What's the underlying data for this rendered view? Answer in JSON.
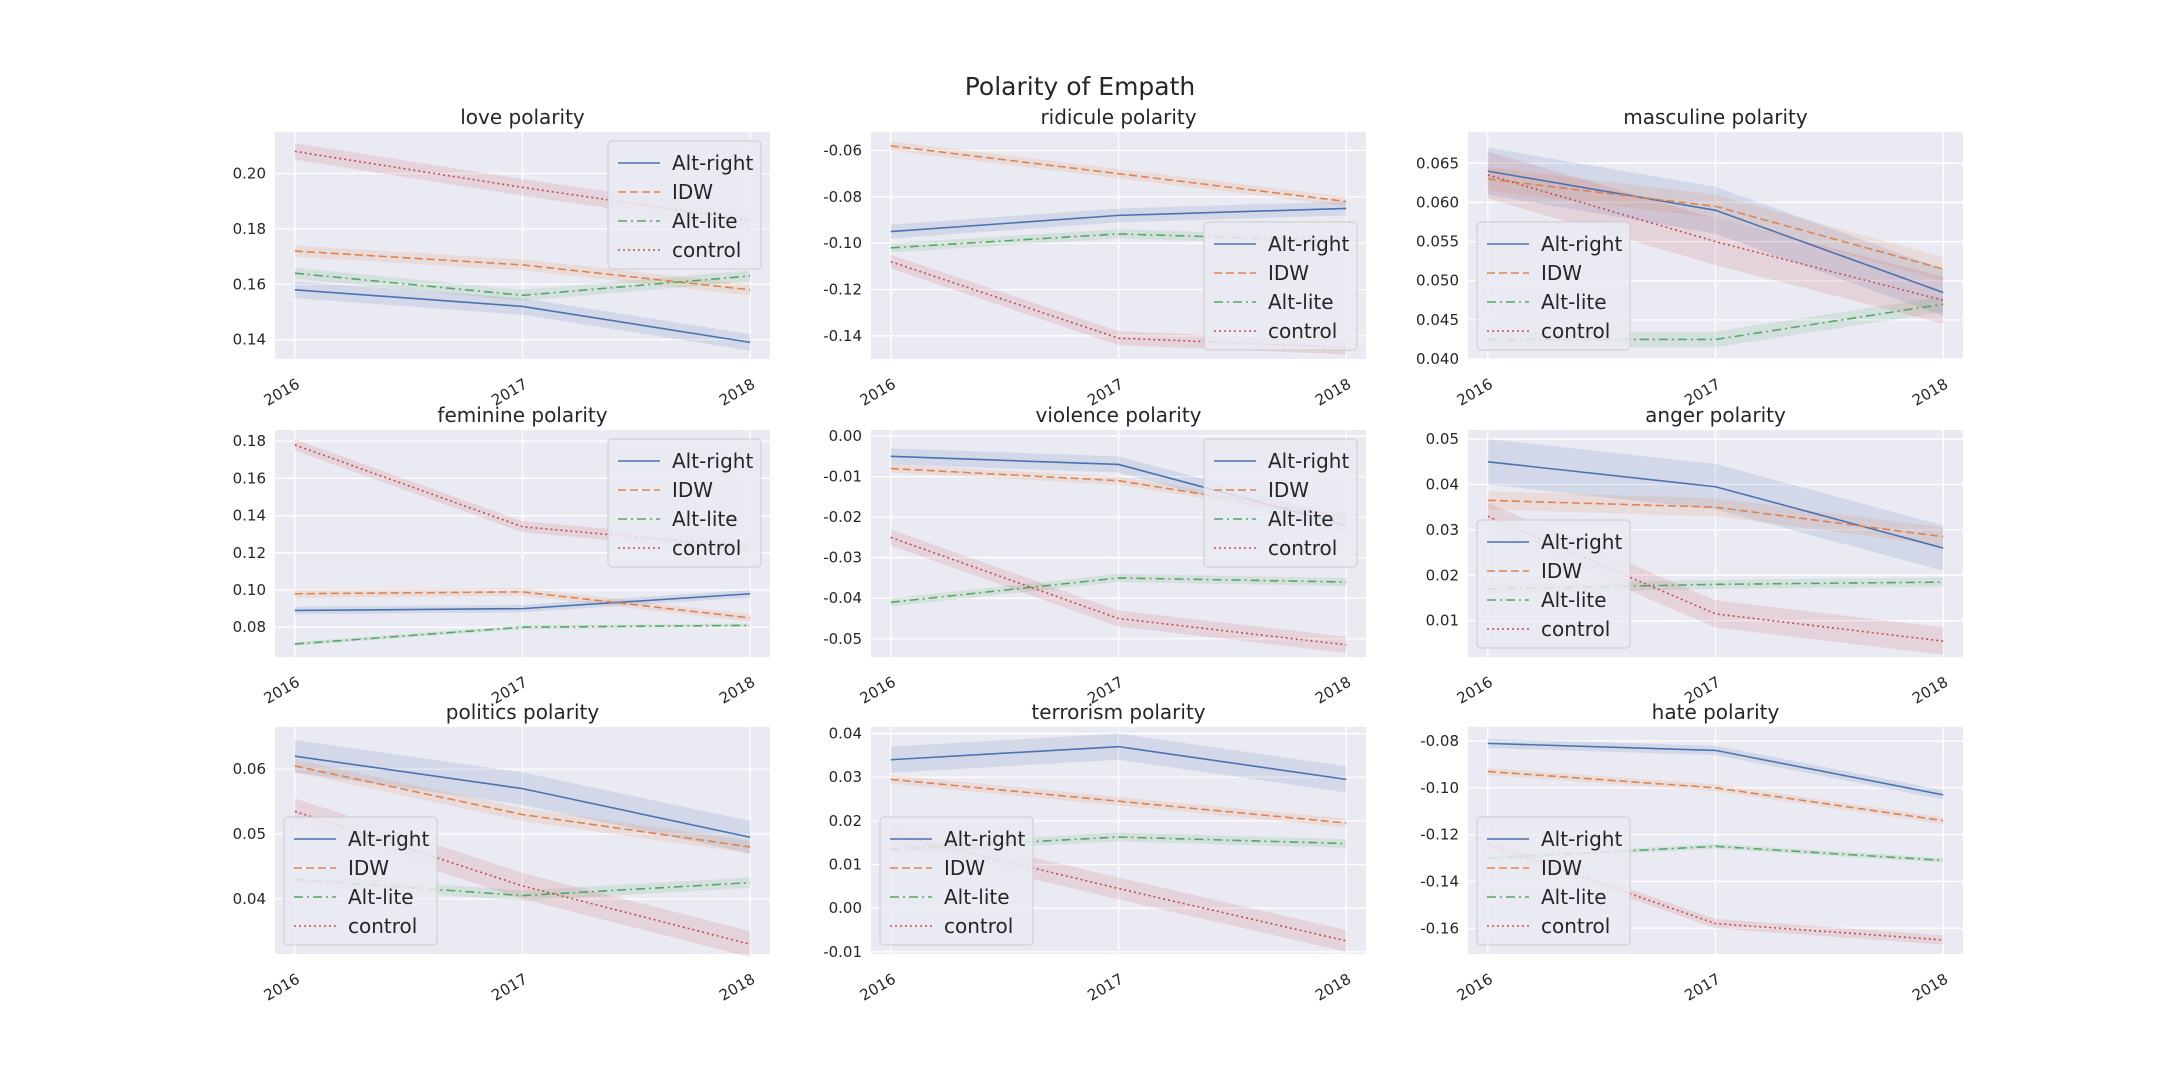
{
  "figure": {
    "title": "Polarity of Empath"
  },
  "colors": {
    "Alt-right": "#4c72b0",
    "IDW": "#dd8452",
    "Alt-lite": "#55a868",
    "control": "#c44e52",
    "panel_bg": "#eaeaf2",
    "grid": "#ffffff"
  },
  "legend_labels": [
    "Alt-right",
    "IDW",
    "Alt-lite",
    "control"
  ],
  "chart_data": [
    {
      "type": "line",
      "title": "love polarity",
      "legend": "upper right",
      "x": [
        "2016",
        "2017",
        "2018"
      ],
      "yticks": [
        "0.14",
        "0.16",
        "0.18",
        "0.20"
      ],
      "ylim": [
        0.133,
        0.215
      ],
      "series": [
        {
          "name": "Alt-right",
          "values": [
            0.158,
            0.152,
            0.139
          ],
          "band": 0.003
        },
        {
          "name": "IDW",
          "values": [
            0.172,
            0.167,
            0.158
          ],
          "band": 0.002
        },
        {
          "name": "Alt-lite",
          "values": [
            0.164,
            0.156,
            0.163
          ],
          "band": 0.002
        },
        {
          "name": "control",
          "values": [
            0.208,
            0.195,
            0.183
          ],
          "band": 0.003
        }
      ]
    },
    {
      "type": "line",
      "title": "ridicule polarity",
      "legend": "lower right",
      "x": [
        "2016",
        "2017",
        "2018"
      ],
      "yticks": [
        "-0.14",
        "-0.12",
        "-0.10",
        "-0.08",
        "-0.06"
      ],
      "ylim": [
        -0.15,
        -0.052
      ],
      "series": [
        {
          "name": "Alt-right",
          "values": [
            -0.095,
            -0.088,
            -0.085
          ],
          "band": 0.003
        },
        {
          "name": "IDW",
          "values": [
            -0.058,
            -0.07,
            -0.082
          ],
          "band": 0.002
        },
        {
          "name": "Alt-lite",
          "values": [
            -0.102,
            -0.096,
            -0.099
          ],
          "band": 0.002
        },
        {
          "name": "control",
          "values": [
            -0.108,
            -0.141,
            -0.145
          ],
          "band": 0.003
        }
      ]
    },
    {
      "type": "line",
      "title": "masculine polarity",
      "legend": "lower left",
      "x": [
        "2016",
        "2017",
        "2018"
      ],
      "yticks": [
        "0.040",
        "0.045",
        "0.050",
        "0.055",
        "0.060",
        "0.065"
      ],
      "ylim": [
        0.04,
        0.069
      ],
      "series": [
        {
          "name": "Alt-right",
          "values": [
            0.064,
            0.059,
            0.0485
          ],
          "band": 0.003
        },
        {
          "name": "IDW",
          "values": [
            0.063,
            0.0595,
            0.0515
          ],
          "band": 0.0015
        },
        {
          "name": "Alt-lite",
          "values": [
            0.0425,
            0.0425,
            0.047
          ],
          "band": 0.001
        },
        {
          "name": "control",
          "values": [
            0.0635,
            0.055,
            0.0475
          ],
          "band": 0.003
        }
      ]
    },
    {
      "type": "line",
      "title": "feminine polarity",
      "legend": "upper right",
      "x": [
        "2016",
        "2017",
        "2018"
      ],
      "yticks": [
        "0.08",
        "0.10",
        "0.12",
        "0.14",
        "0.16",
        "0.18"
      ],
      "ylim": [
        0.064,
        0.186
      ],
      "series": [
        {
          "name": "Alt-right",
          "values": [
            0.089,
            0.09,
            0.098
          ],
          "band": 0.002
        },
        {
          "name": "IDW",
          "values": [
            0.098,
            0.099,
            0.085
          ],
          "band": 0.002
        },
        {
          "name": "Alt-lite",
          "values": [
            0.071,
            0.08,
            0.081
          ],
          "band": 0.001
        },
        {
          "name": "control",
          "values": [
            0.178,
            0.134,
            0.123
          ],
          "band": 0.003
        }
      ]
    },
    {
      "type": "line",
      "title": "violence polarity",
      "legend": "upper right",
      "x": [
        "2016",
        "2017",
        "2018"
      ],
      "yticks": [
        "-0.05",
        "-0.04",
        "-0.03",
        "-0.02",
        "-0.01",
        "0.00"
      ],
      "ylim": [
        -0.0545,
        0.0015
      ],
      "series": [
        {
          "name": "Alt-right",
          "values": [
            -0.005,
            -0.007,
            -0.022
          ],
          "band": 0.002
        },
        {
          "name": "IDW",
          "values": [
            -0.008,
            -0.011,
            -0.02
          ],
          "band": 0.001
        },
        {
          "name": "Alt-lite",
          "values": [
            -0.041,
            -0.035,
            -0.036
          ],
          "band": 0.001
        },
        {
          "name": "control",
          "values": [
            -0.025,
            -0.045,
            -0.0515
          ],
          "band": 0.002
        }
      ]
    },
    {
      "type": "line",
      "title": "anger polarity",
      "legend": "lower left",
      "x": [
        "2016",
        "2017",
        "2018"
      ],
      "yticks": [
        "0.01",
        "0.02",
        "0.03",
        "0.04",
        "0.05"
      ],
      "ylim": [
        0.002,
        0.052
      ],
      "series": [
        {
          "name": "Alt-right",
          "values": [
            0.045,
            0.0395,
            0.026
          ],
          "band": 0.005
        },
        {
          "name": "IDW",
          "values": [
            0.0365,
            0.035,
            0.0285
          ],
          "band": 0.002
        },
        {
          "name": "Alt-lite",
          "values": [
            0.017,
            0.018,
            0.0185
          ],
          "band": 0.001
        },
        {
          "name": "control",
          "values": [
            0.033,
            0.0115,
            0.0055
          ],
          "band": 0.003
        }
      ]
    },
    {
      "type": "line",
      "title": "politics polarity",
      "legend": "lower left",
      "x": [
        "2016",
        "2017",
        "2018"
      ],
      "yticks": [
        "0.04",
        "0.05",
        "0.06"
      ],
      "ylim": [
        0.0315,
        0.0665
      ],
      "series": [
        {
          "name": "Alt-right",
          "values": [
            0.062,
            0.057,
            0.0495
          ],
          "band": 0.0025
        },
        {
          "name": "IDW",
          "values": [
            0.0605,
            0.053,
            0.048
          ],
          "band": 0.001
        },
        {
          "name": "Alt-lite",
          "values": [
            0.043,
            0.0405,
            0.0425
          ],
          "band": 0.0008
        },
        {
          "name": "control",
          "values": [
            0.0535,
            0.042,
            0.033
          ],
          "band": 0.002
        }
      ]
    },
    {
      "type": "line",
      "title": "terrorism polarity",
      "legend": "lower left",
      "x": [
        "2016",
        "2017",
        "2018"
      ],
      "yticks": [
        "-0.01",
        "0.00",
        "0.01",
        "0.02",
        "0.03",
        "0.04"
      ],
      "ylim": [
        -0.0105,
        0.0415
      ],
      "series": [
        {
          "name": "Alt-right",
          "values": [
            0.034,
            0.037,
            0.0295
          ],
          "band": 0.003
        },
        {
          "name": "IDW",
          "values": [
            0.0295,
            0.0245,
            0.0195
          ],
          "band": 0.001
        },
        {
          "name": "Alt-lite",
          "values": [
            0.0135,
            0.0163,
            0.0148
          ],
          "band": 0.001
        },
        {
          "name": "control",
          "values": [
            0.017,
            0.0045,
            -0.0075
          ],
          "band": 0.0025
        }
      ]
    },
    {
      "type": "line",
      "title": "hate polarity",
      "legend": "lower left",
      "x": [
        "2016",
        "2017",
        "2018"
      ],
      "yticks": [
        "-0.16",
        "-0.14",
        "-0.12",
        "-0.10",
        "-0.08"
      ],
      "ylim": [
        -0.171,
        -0.074
      ],
      "series": [
        {
          "name": "Alt-right",
          "values": [
            -0.081,
            -0.084,
            -0.103
          ],
          "band": 0.002
        },
        {
          "name": "IDW",
          "values": [
            -0.093,
            -0.1,
            -0.114
          ],
          "band": 0.0015
        },
        {
          "name": "Alt-lite",
          "values": [
            -0.13,
            -0.125,
            -0.131
          ],
          "band": 0.001
        },
        {
          "name": "control",
          "values": [
            -0.124,
            -0.158,
            -0.165
          ],
          "band": 0.002
        }
      ]
    }
  ]
}
